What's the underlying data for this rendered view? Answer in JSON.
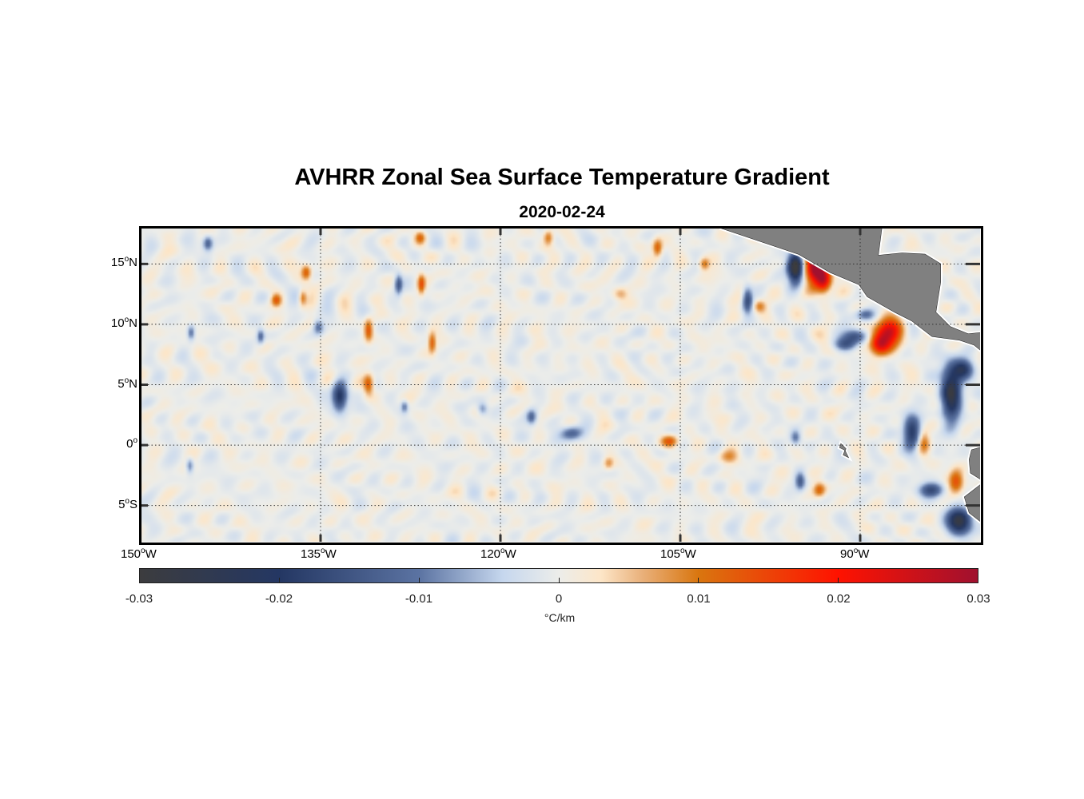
{
  "chart_data": {
    "type": "heatmap",
    "title": "AVHRR Zonal Sea Surface Temperature Gradient",
    "subtitle": "2020-02-24",
    "lon_range": [
      -150,
      -80
    ],
    "lat_range": [
      -8,
      18
    ],
    "grid": true,
    "x_ticks": [
      {
        "value": -150,
        "label": "150",
        "suffix": "W"
      },
      {
        "value": -135,
        "label": "135",
        "suffix": "W"
      },
      {
        "value": -120,
        "label": "120",
        "suffix": "W"
      },
      {
        "value": -105,
        "label": "105",
        "suffix": "W"
      },
      {
        "value": -90,
        "label": "90",
        "suffix": "W"
      }
    ],
    "y_ticks": [
      {
        "value": 15,
        "label": "15",
        "suffix": "N"
      },
      {
        "value": 10,
        "label": "10",
        "suffix": "N"
      },
      {
        "value": 5,
        "label": "5",
        "suffix": "N"
      },
      {
        "value": 0,
        "label": "0",
        "suffix": ""
      },
      {
        "value": -5,
        "label": "5",
        "suffix": "S"
      }
    ],
    "colorbar": {
      "range": [
        -0.03,
        0.03
      ],
      "ticks": [
        "-0.03",
        "-0.02",
        "-0.01",
        "0",
        "0.01",
        "0.02",
        "0.03"
      ],
      "tick_values": [
        -0.03,
        -0.02,
        -0.01,
        0,
        0.01,
        0.02,
        0.03
      ],
      "unit": "°C/km",
      "stops": [
        [
          -0.03,
          "#3c3c3e"
        ],
        [
          -0.02,
          "#243763"
        ],
        [
          -0.01,
          "#5b73a2"
        ],
        [
          -0.004,
          "#c6d7ee"
        ],
        [
          0,
          "#ecedea"
        ],
        [
          0.003,
          "#fde6c8"
        ],
        [
          0.006,
          "#e9b07a"
        ],
        [
          0.01,
          "#d9760f"
        ],
        [
          0.02,
          "#ff1200"
        ],
        [
          0.03,
          "#a0112f"
        ]
      ]
    },
    "features": [
      [
        -93.7,
        14.9,
        0.034,
        0.8,
        1.6
      ],
      [
        -95.4,
        14.7,
        -0.034,
        0.6,
        1.2
      ],
      [
        -93.0,
        13.6,
        0.02,
        0.6,
        1.0
      ],
      [
        -87.7,
        9.3,
        0.024,
        1.2,
        1.2
      ],
      [
        -88.4,
        8.3,
        0.018,
        0.8,
        0.8
      ],
      [
        -90.4,
        9.0,
        -0.016,
        1.0,
        0.6
      ],
      [
        -89.6,
        10.8,
        -0.012,
        0.8,
        0.5
      ],
      [
        -91.2,
        8.3,
        -0.012,
        0.9,
        0.5
      ],
      [
        -82.4,
        4.3,
        -0.028,
        0.8,
        2.2
      ],
      [
        -81.4,
        6.3,
        -0.02,
        0.8,
        0.8
      ],
      [
        -85.7,
        1.0,
        -0.02,
        0.7,
        1.4
      ],
      [
        -84.7,
        0.3,
        0.011,
        0.5,
        1.0
      ],
      [
        -82.0,
        -3.0,
        0.013,
        0.6,
        1.0
      ],
      [
        -81.7,
        -6.3,
        -0.028,
        1.0,
        1.0
      ],
      [
        -84.1,
        -3.7,
        -0.016,
        1.0,
        0.6
      ],
      [
        -93.4,
        -3.7,
        0.011,
        0.5,
        0.6
      ],
      [
        -95.0,
        -3.0,
        -0.013,
        0.4,
        0.7
      ],
      [
        -95.4,
        0.6,
        -0.01,
        0.4,
        0.6
      ],
      [
        -101.0,
        -1.0,
        0.008,
        0.8,
        0.6
      ],
      [
        -105.9,
        0.3,
        0.013,
        0.7,
        0.5
      ],
      [
        -114.1,
        1.0,
        -0.013,
        0.9,
        0.6
      ],
      [
        -117.4,
        2.3,
        -0.011,
        0.4,
        0.6
      ],
      [
        -133.4,
        4.0,
        -0.022,
        0.6,
        1.1
      ],
      [
        -131.0,
        5.0,
        0.013,
        0.4,
        0.8
      ],
      [
        -131.0,
        9.5,
        0.013,
        0.35,
        0.9
      ],
      [
        -125.7,
        8.5,
        0.012,
        0.3,
        0.8
      ],
      [
        -126.6,
        13.3,
        0.013,
        0.3,
        0.8
      ],
      [
        -136.2,
        14.3,
        0.013,
        0.4,
        0.6
      ],
      [
        -138.7,
        12.0,
        0.011,
        0.4,
        0.5
      ],
      [
        -128.5,
        13.3,
        -0.013,
        0.3,
        0.8
      ],
      [
        -106.9,
        16.3,
        0.013,
        0.4,
        0.7
      ],
      [
        -116.0,
        17.2,
        0.011,
        0.4,
        0.6
      ],
      [
        -126.7,
        17.2,
        0.01,
        0.4,
        0.5
      ],
      [
        -99.4,
        12.0,
        -0.016,
        0.4,
        1.0
      ],
      [
        -144.4,
        16.7,
        -0.013,
        0.4,
        0.6
      ],
      [
        -145.9,
        -1.7,
        -0.01,
        0.3,
        0.6
      ],
      [
        -145.8,
        9.3,
        -0.011,
        0.3,
        0.6
      ],
      [
        -140.0,
        9.0,
        -0.011,
        0.3,
        0.6
      ],
      [
        -135.2,
        9.8,
        -0.01,
        0.4,
        0.6
      ],
      [
        -121.5,
        3.0,
        -0.009,
        0.4,
        0.5
      ],
      [
        -110.0,
        12.5,
        0.006,
        0.6,
        0.5
      ],
      [
        -103.0,
        15.0,
        0.01,
        0.4,
        0.5
      ],
      [
        -98.4,
        11.5,
        0.009,
        0.5,
        0.5
      ],
      [
        -136.5,
        12.2,
        0.01,
        0.3,
        0.6
      ],
      [
        -128.0,
        3.2,
        -0.01,
        0.3,
        0.5
      ],
      [
        -111.0,
        -1.5,
        0.007,
        0.4,
        0.5
      ]
    ],
    "land": [
      [
        [
          -101.7,
          18
        ],
        [
          -95.1,
          15.8
        ],
        [
          -92.5,
          14.3
        ],
        [
          -90.1,
          13.3
        ],
        [
          -89.4,
          12.3
        ],
        [
          -87.1,
          11
        ],
        [
          -85.7,
          10.3
        ],
        [
          -84,
          9
        ],
        [
          -81.7,
          8.7
        ],
        [
          -80.5,
          8.3
        ],
        [
          -80,
          7.9
        ],
        [
          -80,
          9.3
        ],
        [
          -81,
          9.2
        ],
        [
          -82.5,
          9.8
        ],
        [
          -83.7,
          11
        ],
        [
          -83.3,
          13.5
        ],
        [
          -83.3,
          15
        ],
        [
          -84.6,
          15.8
        ],
        [
          -86.5,
          15.9
        ],
        [
          -88.5,
          15.7
        ],
        [
          -88.2,
          18
        ]
      ],
      [
        [
          -80,
          -0.2
        ],
        [
          -80.7,
          -0.4
        ],
        [
          -80.9,
          -1.2
        ],
        [
          -80.8,
          -2.3
        ],
        [
          -80,
          -2.8
        ]
      ],
      [
        [
          -80,
          -3.3
        ],
        [
          -81.3,
          -4.3
        ],
        [
          -80.9,
          -5.6
        ],
        [
          -80,
          -6.3
        ]
      ],
      [
        [
          -91.6,
          0.1
        ],
        [
          -91.2,
          -0.3
        ],
        [
          -91.4,
          -0.8
        ],
        [
          -91.0,
          -1.0
        ],
        [
          -91.3,
          -0.4
        ],
        [
          -91.7,
          -0.2
        ]
      ]
    ]
  }
}
